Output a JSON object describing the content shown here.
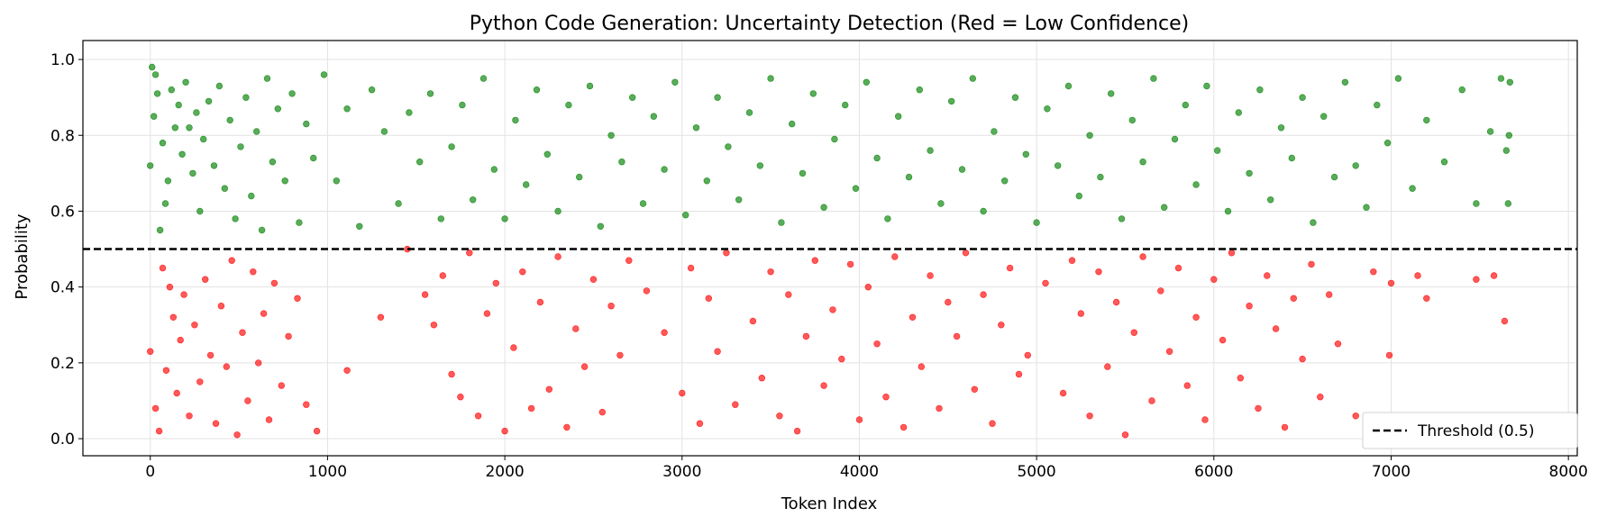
{
  "chart_data": {
    "type": "scatter",
    "title": "Python Code Generation: Uncertainty Detection (Red = Low Confidence)",
    "xlabel": "Token Index",
    "ylabel": "Probability",
    "xlim": [
      -380,
      8050
    ],
    "ylim": [
      -0.045,
      1.05
    ],
    "x_ticks": [
      0,
      1000,
      2000,
      3000,
      4000,
      5000,
      6000,
      7000,
      8000
    ],
    "y_ticks": [
      0.0,
      0.2,
      0.4,
      0.6,
      0.8,
      1.0
    ],
    "x_tick_labels": [
      "0",
      "1000",
      "2000",
      "3000",
      "4000",
      "5000",
      "6000",
      "7000",
      "8000"
    ],
    "y_tick_labels": [
      "0.0",
      "0.2",
      "0.4",
      "0.6",
      "0.8",
      "1.0"
    ],
    "grid": true,
    "threshold": {
      "value": 0.5,
      "label": "Threshold (0.5)",
      "style": "dashed",
      "color": "#000000"
    },
    "legend": {
      "position": "bottom-right",
      "entries": [
        "Threshold (0.5)"
      ]
    },
    "colors": {
      "high_confidence": "#008000",
      "low_confidence": "#ff0000"
    },
    "series": [
      {
        "color": "#008000",
        "points": [
          [
            0,
            0.72
          ],
          [
            10,
            0.98
          ],
          [
            20,
            0.85
          ],
          [
            30,
            0.96
          ],
          [
            40,
            0.91
          ],
          [
            55,
            0.55
          ],
          [
            70,
            0.78
          ],
          [
            85,
            0.62
          ],
          [
            100,
            0.68
          ],
          [
            120,
            0.92
          ],
          [
            140,
            0.82
          ],
          [
            160,
            0.88
          ],
          [
            180,
            0.75
          ],
          [
            200,
            0.94
          ],
          [
            220,
            0.82
          ],
          [
            240,
            0.7
          ],
          [
            260,
            0.86
          ],
          [
            280,
            0.6
          ],
          [
            300,
            0.79
          ],
          [
            330,
            0.89
          ],
          [
            360,
            0.72
          ],
          [
            390,
            0.93
          ],
          [
            420,
            0.66
          ],
          [
            450,
            0.84
          ],
          [
            480,
            0.58
          ],
          [
            510,
            0.77
          ],
          [
            540,
            0.9
          ],
          [
            570,
            0.64
          ],
          [
            600,
            0.81
          ],
          [
            630,
            0.55
          ],
          [
            660,
            0.95
          ],
          [
            690,
            0.73
          ],
          [
            720,
            0.87
          ],
          [
            760,
            0.68
          ],
          [
            800,
            0.91
          ],
          [
            840,
            0.57
          ],
          [
            880,
            0.83
          ],
          [
            920,
            0.74
          ],
          [
            980,
            0.96
          ],
          [
            1050,
            0.68
          ],
          [
            1110,
            0.87
          ],
          [
            1180,
            0.56
          ],
          [
            1250,
            0.92
          ],
          [
            1320,
            0.81
          ],
          [
            1400,
            0.62
          ],
          [
            1460,
            0.86
          ],
          [
            1520,
            0.73
          ],
          [
            1580,
            0.91
          ],
          [
            1640,
            0.58
          ],
          [
            1700,
            0.77
          ],
          [
            1760,
            0.88
          ],
          [
            1820,
            0.63
          ],
          [
            1880,
            0.95
          ],
          [
            1940,
            0.71
          ],
          [
            2000,
            0.58
          ],
          [
            2060,
            0.84
          ],
          [
            2120,
            0.67
          ],
          [
            2180,
            0.92
          ],
          [
            2240,
            0.75
          ],
          [
            2300,
            0.6
          ],
          [
            2360,
            0.88
          ],
          [
            2420,
            0.69
          ],
          [
            2480,
            0.93
          ],
          [
            2540,
            0.56
          ],
          [
            2600,
            0.8
          ],
          [
            2660,
            0.73
          ],
          [
            2720,
            0.9
          ],
          [
            2780,
            0.62
          ],
          [
            2840,
            0.85
          ],
          [
            2900,
            0.71
          ],
          [
            2960,
            0.94
          ],
          [
            3020,
            0.59
          ],
          [
            3080,
            0.82
          ],
          [
            3140,
            0.68
          ],
          [
            3200,
            0.9
          ],
          [
            3260,
            0.77
          ],
          [
            3320,
            0.63
          ],
          [
            3380,
            0.86
          ],
          [
            3440,
            0.72
          ],
          [
            3500,
            0.95
          ],
          [
            3560,
            0.57
          ],
          [
            3620,
            0.83
          ],
          [
            3680,
            0.7
          ],
          [
            3740,
            0.91
          ],
          [
            3800,
            0.61
          ],
          [
            3860,
            0.79
          ],
          [
            3920,
            0.88
          ],
          [
            3980,
            0.66
          ],
          [
            4040,
            0.94
          ],
          [
            4100,
            0.74
          ],
          [
            4160,
            0.58
          ],
          [
            4220,
            0.85
          ],
          [
            4280,
            0.69
          ],
          [
            4340,
            0.92
          ],
          [
            4400,
            0.76
          ],
          [
            4460,
            0.62
          ],
          [
            4520,
            0.89
          ],
          [
            4580,
            0.71
          ],
          [
            4640,
            0.95
          ],
          [
            4700,
            0.6
          ],
          [
            4760,
            0.81
          ],
          [
            4820,
            0.68
          ],
          [
            4880,
            0.9
          ],
          [
            4940,
            0.75
          ],
          [
            5000,
            0.57
          ],
          [
            5060,
            0.87
          ],
          [
            5120,
            0.72
          ],
          [
            5180,
            0.93
          ],
          [
            5240,
            0.64
          ],
          [
            5300,
            0.8
          ],
          [
            5360,
            0.69
          ],
          [
            5420,
            0.91
          ],
          [
            5480,
            0.58
          ],
          [
            5540,
            0.84
          ],
          [
            5600,
            0.73
          ],
          [
            5660,
            0.95
          ],
          [
            5720,
            0.61
          ],
          [
            5780,
            0.79
          ],
          [
            5840,
            0.88
          ],
          [
            5900,
            0.67
          ],
          [
            5960,
            0.93
          ],
          [
            6020,
            0.76
          ],
          [
            6080,
            0.6
          ],
          [
            6140,
            0.86
          ],
          [
            6200,
            0.7
          ],
          [
            6260,
            0.92
          ],
          [
            6320,
            0.63
          ],
          [
            6380,
            0.82
          ],
          [
            6440,
            0.74
          ],
          [
            6500,
            0.9
          ],
          [
            6560,
            0.57
          ],
          [
            6620,
            0.85
          ],
          [
            6680,
            0.69
          ],
          [
            6740,
            0.94
          ],
          [
            6800,
            0.72
          ],
          [
            6860,
            0.61
          ],
          [
            6920,
            0.88
          ],
          [
            6980,
            0.78
          ],
          [
            7040,
            0.95
          ],
          [
            7120,
            0.66
          ],
          [
            7200,
            0.84
          ],
          [
            7300,
            0.73
          ],
          [
            7400,
            0.92
          ],
          [
            7480,
            0.62
          ],
          [
            7560,
            0.81
          ],
          [
            7620,
            0.95
          ],
          [
            7650,
            0.76
          ],
          [
            7660,
            0.62
          ],
          [
            7665,
            0.8
          ],
          [
            7670,
            0.94
          ]
        ]
      },
      {
        "color": "#ff0000",
        "points": [
          [
            0,
            0.23
          ],
          [
            30,
            0.08
          ],
          [
            50,
            0.02
          ],
          [
            70,
            0.45
          ],
          [
            90,
            0.18
          ],
          [
            110,
            0.4
          ],
          [
            130,
            0.32
          ],
          [
            150,
            0.12
          ],
          [
            170,
            0.26
          ],
          [
            190,
            0.38
          ],
          [
            220,
            0.06
          ],
          [
            250,
            0.3
          ],
          [
            280,
            0.15
          ],
          [
            310,
            0.42
          ],
          [
            340,
            0.22
          ],
          [
            370,
            0.04
          ],
          [
            400,
            0.35
          ],
          [
            430,
            0.19
          ],
          [
            460,
            0.47
          ],
          [
            490,
            0.01
          ],
          [
            520,
            0.28
          ],
          [
            550,
            0.1
          ],
          [
            580,
            0.44
          ],
          [
            610,
            0.2
          ],
          [
            640,
            0.33
          ],
          [
            670,
            0.05
          ],
          [
            700,
            0.41
          ],
          [
            740,
            0.14
          ],
          [
            780,
            0.27
          ],
          [
            830,
            0.37
          ],
          [
            880,
            0.09
          ],
          [
            940,
            0.02
          ],
          [
            1110,
            0.18
          ],
          [
            1300,
            0.32
          ],
          [
            1450,
            0.5
          ],
          [
            1550,
            0.38
          ],
          [
            1600,
            0.3
          ],
          [
            1650,
            0.43
          ],
          [
            1700,
            0.17
          ],
          [
            1750,
            0.11
          ],
          [
            1800,
            0.49
          ],
          [
            1850,
            0.06
          ],
          [
            1900,
            0.33
          ],
          [
            1950,
            0.41
          ],
          [
            2000,
            0.02
          ],
          [
            2050,
            0.24
          ],
          [
            2100,
            0.44
          ],
          [
            2150,
            0.08
          ],
          [
            2200,
            0.36
          ],
          [
            2250,
            0.13
          ],
          [
            2300,
            0.48
          ],
          [
            2350,
            0.03
          ],
          [
            2400,
            0.29
          ],
          [
            2450,
            0.19
          ],
          [
            2500,
            0.42
          ],
          [
            2550,
            0.07
          ],
          [
            2600,
            0.35
          ],
          [
            2650,
            0.22
          ],
          [
            2700,
            0.47
          ],
          [
            2800,
            0.39
          ],
          [
            2900,
            0.28
          ],
          [
            3000,
            0.12
          ],
          [
            3050,
            0.45
          ],
          [
            3100,
            0.04
          ],
          [
            3150,
            0.37
          ],
          [
            3200,
            0.23
          ],
          [
            3250,
            0.49
          ],
          [
            3300,
            0.09
          ],
          [
            3400,
            0.31
          ],
          [
            3450,
            0.16
          ],
          [
            3500,
            0.44
          ],
          [
            3550,
            0.06
          ],
          [
            3600,
            0.38
          ],
          [
            3650,
            0.02
          ],
          [
            3700,
            0.27
          ],
          [
            3750,
            0.47
          ],
          [
            3800,
            0.14
          ],
          [
            3850,
            0.34
          ],
          [
            3900,
            0.21
          ],
          [
            3950,
            0.46
          ],
          [
            4000,
            0.05
          ],
          [
            4050,
            0.4
          ],
          [
            4100,
            0.25
          ],
          [
            4150,
            0.11
          ],
          [
            4200,
            0.48
          ],
          [
            4250,
            0.03
          ],
          [
            4300,
            0.32
          ],
          [
            4350,
            0.19
          ],
          [
            4400,
            0.43
          ],
          [
            4450,
            0.08
          ],
          [
            4500,
            0.36
          ],
          [
            4550,
            0.27
          ],
          [
            4600,
            0.49
          ],
          [
            4650,
            0.13
          ],
          [
            4700,
            0.38
          ],
          [
            4750,
            0.04
          ],
          [
            4800,
            0.3
          ],
          [
            4850,
            0.45
          ],
          [
            4900,
            0.17
          ],
          [
            4950,
            0.22
          ],
          [
            5050,
            0.41
          ],
          [
            5150,
            0.12
          ],
          [
            5200,
            0.47
          ],
          [
            5250,
            0.33
          ],
          [
            5300,
            0.06
          ],
          [
            5350,
            0.44
          ],
          [
            5400,
            0.19
          ],
          [
            5450,
            0.36
          ],
          [
            5500,
            0.01
          ],
          [
            5550,
            0.28
          ],
          [
            5600,
            0.48
          ],
          [
            5650,
            0.1
          ],
          [
            5700,
            0.39
          ],
          [
            5750,
            0.23
          ],
          [
            5800,
            0.45
          ],
          [
            5850,
            0.14
          ],
          [
            5900,
            0.32
          ],
          [
            5950,
            0.05
          ],
          [
            6000,
            0.42
          ],
          [
            6050,
            0.26
          ],
          [
            6100,
            0.49
          ],
          [
            6150,
            0.16
          ],
          [
            6200,
            0.35
          ],
          [
            6250,
            0.08
          ],
          [
            6300,
            0.43
          ],
          [
            6350,
            0.29
          ],
          [
            6400,
            0.03
          ],
          [
            6450,
            0.37
          ],
          [
            6500,
            0.21
          ],
          [
            6550,
            0.46
          ],
          [
            6600,
            0.11
          ],
          [
            6650,
            0.38
          ],
          [
            6700,
            0.25
          ],
          [
            6800,
            0.06
          ],
          [
            6900,
            0.44
          ],
          [
            6990,
            0.22
          ],
          [
            7000,
            0.41
          ],
          [
            7150,
            0.43
          ],
          [
            7200,
            0.37
          ],
          [
            7480,
            0.42
          ],
          [
            7580,
            0.43
          ],
          [
            7640,
            0.31
          ]
        ]
      }
    ]
  }
}
